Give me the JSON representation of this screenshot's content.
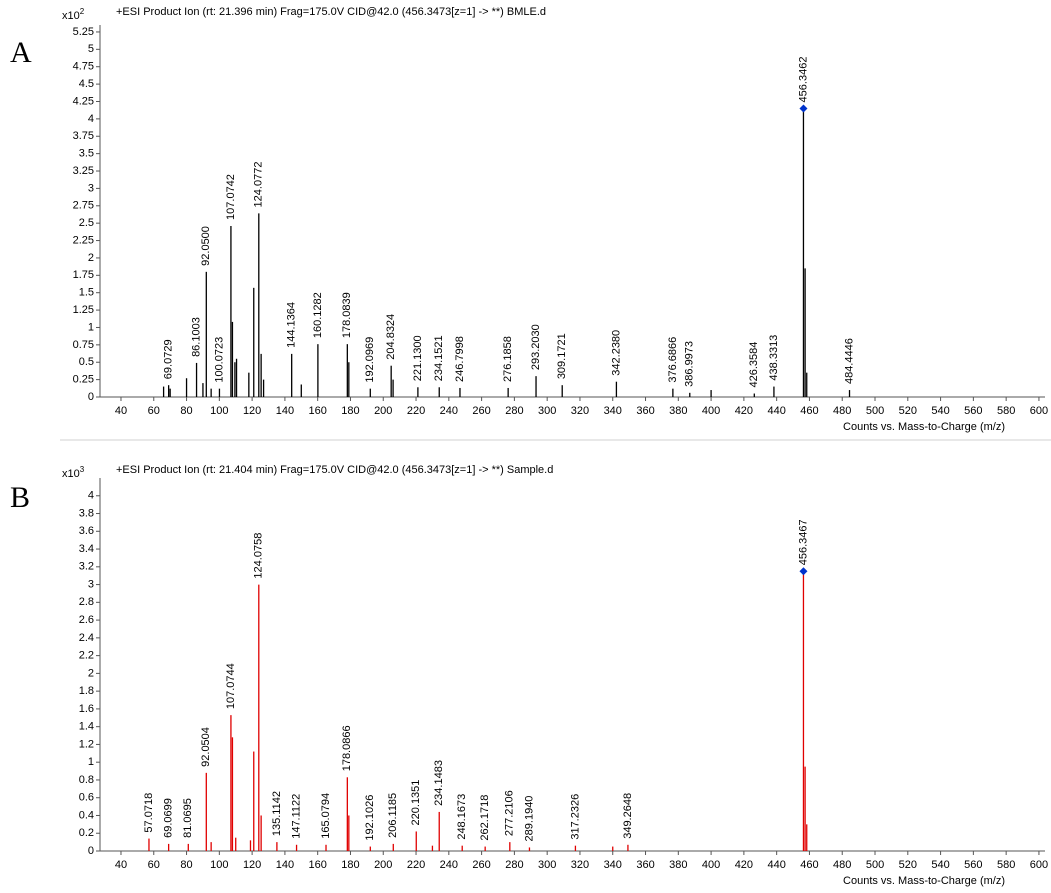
{
  "chart_data": [
    {
      "type": "spectrum",
      "panel_label": "A",
      "title": "+ESI Product Ion (rt: 21.396 min) Frag=175.0V CID@42.0 (456.3473[z=1] -> **) BMLE.d",
      "y_multiplier": "x10",
      "y_exponent": 2,
      "x_label": "Counts vs. Mass-to-Charge (m/z)",
      "color": "#000000",
      "marker_color": "#0033cc",
      "x": [
        69.0729,
        86.1003,
        92.05,
        100.0723,
        107.0742,
        124.0772,
        144.1364,
        160.1282,
        178.0839,
        192.0969,
        204.8324,
        221.13,
        234.1521,
        246.7998,
        276.1858,
        293.203,
        309.1721,
        342.238,
        376.6866,
        386.9973,
        426.3584,
        438.3313,
        456.3462,
        484.4446,
        66,
        70,
        80,
        90,
        95,
        108,
        109.5,
        110.5,
        118,
        121,
        125.5,
        127,
        150,
        179,
        206,
        400,
        457.35,
        458.35
      ],
      "values": [
        0.17,
        0.49,
        1.8,
        0.12,
        2.46,
        2.64,
        0.62,
        0.76,
        0.76,
        0.12,
        0.45,
        0.14,
        0.14,
        0.13,
        0.13,
        0.3,
        0.17,
        0.22,
        0.12,
        0.06,
        0.05,
        0.15,
        4.15,
        0.1,
        0.15,
        0.12,
        0.27,
        0.2,
        0.12,
        1.08,
        0.5,
        0.55,
        0.35,
        1.57,
        0.62,
        0.25,
        0.18,
        0.5,
        0.25,
        0.1,
        1.85,
        0.35
      ],
      "labels": [
        "69.0729",
        "86.1003",
        "92.0500",
        "100.0723",
        "107.0742",
        "124.0772",
        "144.1364",
        "160.1282",
        "178.0839",
        "192.0969",
        "204.8324",
        "221.1300",
        "234.1521",
        "246.7998",
        "276.1858",
        "293.2030",
        "309.1721",
        "342.2380",
        "376.6866",
        "386.9973",
        "426.3584",
        "438.3313",
        "456.3462",
        "484.4446",
        null,
        null,
        null,
        null,
        null,
        null,
        null,
        null,
        null,
        null,
        null,
        null,
        null,
        null,
        null,
        null,
        null,
        null
      ],
      "xlim": [
        27.2,
        603.7
      ],
      "ylim": [
        0,
        5.35
      ],
      "xticks": [
        40,
        60,
        80,
        100,
        120,
        140,
        160,
        180,
        200,
        220,
        240,
        260,
        280,
        300,
        320,
        340,
        360,
        380,
        400,
        420,
        440,
        460,
        480,
        500,
        520,
        540,
        560,
        580,
        600
      ],
      "yticks": [
        0,
        0.25,
        0.5,
        0.75,
        1,
        1.25,
        1.5,
        1.75,
        2,
        2.25,
        2.5,
        2.75,
        3,
        3.25,
        3.5,
        3.75,
        4,
        4.25,
        4.5,
        4.75,
        5,
        5.25
      ]
    },
    {
      "type": "spectrum",
      "panel_label": "B",
      "title": "+ESI Product Ion (rt: 21.404 min) Frag=175.0V CID@42.0 (456.3473[z=1] -> **) Sample.d",
      "y_multiplier": "x10",
      "y_exponent": 3,
      "x_label": "Counts vs. Mass-to-Charge (m/z)",
      "color": "#e00000",
      "marker_color": "#0033cc",
      "x": [
        57.0718,
        69.0699,
        81.0695,
        92.0504,
        107.0744,
        124.0758,
        135.1142,
        147.1122,
        165.0794,
        178.0866,
        192.1026,
        206.1185,
        220.1351,
        234.1483,
        248.1673,
        262.1718,
        277.2106,
        289.194,
        317.2326,
        349.2648,
        456.3467,
        95,
        108,
        110,
        119,
        121,
        125.5,
        179,
        230,
        340,
        457.35,
        458.35
      ],
      "values": [
        0.14,
        0.08,
        0.08,
        0.88,
        1.53,
        3.0,
        0.1,
        0.07,
        0.07,
        0.83,
        0.05,
        0.08,
        0.22,
        0.44,
        0.06,
        0.05,
        0.1,
        0.04,
        0.06,
        0.07,
        3.15,
        0.1,
        1.28,
        0.15,
        0.12,
        1.12,
        0.4,
        0.4,
        0.06,
        0.05,
        0.95,
        0.3
      ],
      "labels": [
        "57.0718",
        "69.0699",
        "81.0695",
        "92.0504",
        "107.0744",
        "124.0758",
        "135.1142",
        "147.1122",
        "165.0794",
        "178.0866",
        "192.1026",
        "206.1185",
        "220.1351",
        "234.1483",
        "248.1673",
        "262.1718",
        "277.2106",
        "289.1940",
        "317.2326",
        "349.2648",
        "456.3467",
        null,
        null,
        null,
        null,
        null,
        null,
        null,
        null,
        null,
        null,
        null
      ],
      "xlim": [
        27.2,
        603.7
      ],
      "ylim": [
        0,
        4.2
      ],
      "xticks": [
        40,
        60,
        80,
        100,
        120,
        140,
        160,
        180,
        200,
        220,
        240,
        260,
        280,
        300,
        320,
        340,
        360,
        380,
        400,
        420,
        440,
        460,
        480,
        500,
        520,
        540,
        560,
        580,
        600
      ],
      "yticks": [
        0,
        0.2,
        0.4,
        0.6,
        0.8,
        1,
        1.2,
        1.4,
        1.6,
        1.8,
        2,
        2.2,
        2.4,
        2.6,
        2.8,
        3,
        3.2,
        3.4,
        3.6,
        3.8,
        4
      ]
    }
  ]
}
